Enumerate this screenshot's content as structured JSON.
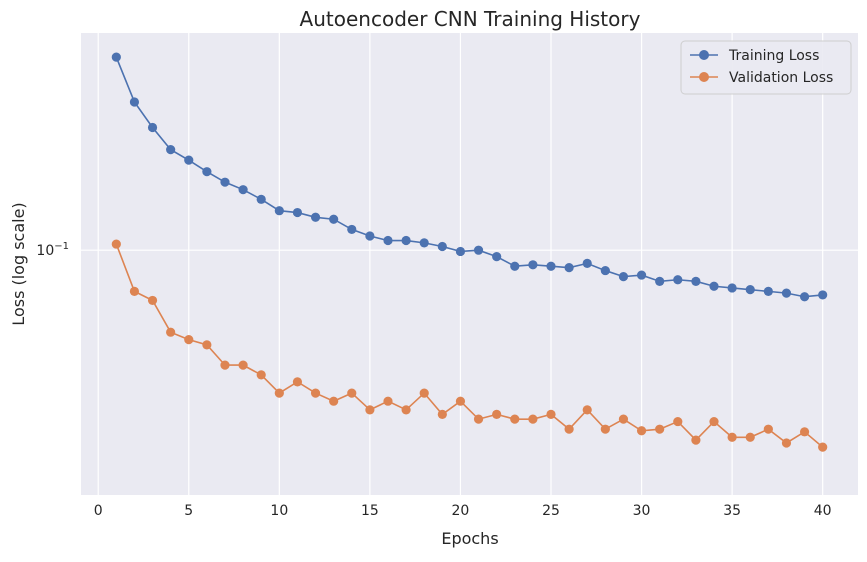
{
  "chart_data": {
    "type": "line",
    "title": "Autoencoder CNN Training History",
    "xlabel": "Epochs",
    "ylabel": "Loss (log scale)",
    "yscale": "log",
    "xlim": [
      -0.95,
      41.95
    ],
    "ylim": [
      0.0142,
      0.565
    ],
    "xticks": [
      0,
      5,
      10,
      15,
      20,
      25,
      30,
      35,
      40
    ],
    "yticks": [
      {
        "value": 0.1,
        "base": "10",
        "exp": "−1"
      }
    ],
    "grid": true,
    "legend_position": "top-right",
    "background": "#eaeaf2",
    "x": [
      1,
      2,
      3,
      4,
      5,
      6,
      7,
      8,
      9,
      10,
      11,
      12,
      13,
      14,
      15,
      16,
      17,
      18,
      19,
      20,
      21,
      22,
      23,
      24,
      25,
      26,
      27,
      28,
      29,
      30,
      31,
      32,
      33,
      34,
      35,
      36,
      37,
      38,
      39,
      40
    ],
    "series": [
      {
        "name": "Training Loss",
        "color": "#4c72b0",
        "values": [
          0.466,
          0.326,
          0.266,
          0.223,
          0.205,
          0.187,
          0.172,
          0.162,
          0.15,
          0.137,
          0.135,
          0.13,
          0.128,
          0.118,
          0.112,
          0.108,
          0.108,
          0.106,
          0.103,
          0.099,
          0.1,
          0.095,
          0.088,
          0.089,
          0.088,
          0.087,
          0.09,
          0.085,
          0.081,
          0.082,
          0.078,
          0.079,
          0.078,
          0.075,
          0.074,
          0.073,
          0.072,
          0.071,
          0.069,
          0.07
        ]
      },
      {
        "name": "Validation Loss",
        "color": "#dd8452",
        "values": [
          0.105,
          0.072,
          0.067,
          0.052,
          0.049,
          0.047,
          0.04,
          0.04,
          0.037,
          0.032,
          0.035,
          0.032,
          0.03,
          0.032,
          0.028,
          0.03,
          0.028,
          0.032,
          0.027,
          0.03,
          0.026,
          0.027,
          0.026,
          0.026,
          0.027,
          0.024,
          0.028,
          0.024,
          0.026,
          0.0237,
          0.024,
          0.0255,
          0.022,
          0.0255,
          0.0225,
          0.0225,
          0.024,
          0.0215,
          0.0235,
          0.0208
        ]
      }
    ]
  }
}
